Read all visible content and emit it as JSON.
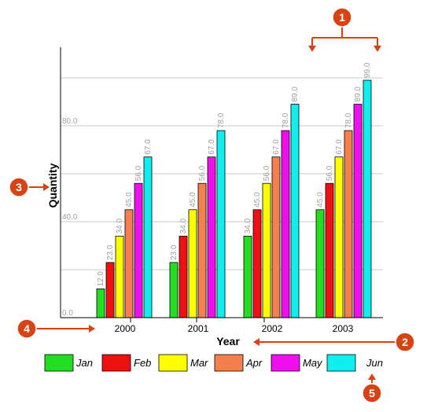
{
  "chart_data": {
    "type": "bar",
    "title": "",
    "xlabel": "Year",
    "ylabel": "Quantity",
    "categories": [
      "2000",
      "2001",
      "2002",
      "2003"
    ],
    "series": [
      {
        "name": "Jan",
        "values": [
          12.0,
          23.0,
          34.0,
          45.0
        ],
        "color": "#22dd22"
      },
      {
        "name": "Feb",
        "values": [
          23.0,
          34.0,
          45.0,
          56.0
        ],
        "color": "#ee1111"
      },
      {
        "name": "Mar",
        "values": [
          34.0,
          45.0,
          56.0,
          67.0
        ],
        "color": "#ffff00"
      },
      {
        "name": "Apr",
        "values": [
          45.0,
          56.0,
          67.0,
          78.0
        ],
        "color": "#f47f4f"
      },
      {
        "name": "May",
        "values": [
          56.0,
          67.0,
          78.0,
          89.0
        ],
        "color": "#ee11ee"
      },
      {
        "name": "Jun",
        "values": [
          67.0,
          78.0,
          89.0,
          99.0
        ],
        "color": "#11eeee"
      }
    ],
    "data_labels": true,
    "y_tick_labels": [
      "0.0",
      "40.0",
      "80.0"
    ],
    "y_ticks": [
      0,
      40,
      80
    ],
    "ylim": [
      0,
      112
    ],
    "grid_y": [
      0,
      20,
      40,
      60,
      80,
      100
    ],
    "grid": true,
    "legend_position": "bottom"
  },
  "callouts": [
    {
      "number": "1",
      "color": "#d84315"
    },
    {
      "number": "2",
      "color": "#d84315"
    },
    {
      "number": "3",
      "color": "#d84315"
    },
    {
      "number": "4",
      "color": "#d84315"
    },
    {
      "number": "5",
      "color": "#d84315"
    }
  ]
}
